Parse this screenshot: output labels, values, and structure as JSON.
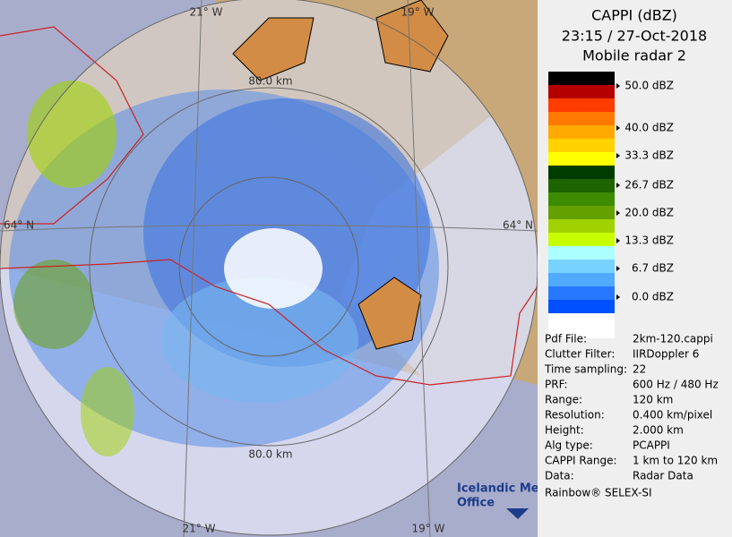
{
  "header": {
    "title": "CAPPI (dBZ)",
    "time": "23:15 / 27-Oct-2018",
    "radar": "Mobile radar 2"
  },
  "legend": {
    "colors": [
      "#000000",
      "#b40000",
      "#ff3c00",
      "#ff7800",
      "#ffaa00",
      "#ffd200",
      "#ffff00",
      "#003c00",
      "#1e6400",
      "#3c8c00",
      "#64a000",
      "#a0d200",
      "#c8ff00",
      "#aaffff",
      "#78d2ff",
      "#50aaff",
      "#2878ff",
      "#0050ff"
    ],
    "labels": [
      "50.0 dBZ",
      "40.0 dBZ",
      "33.3 dBZ",
      "26.7 dBZ",
      "20.0 dBZ",
      "13.3 dBZ",
      "6.7 dBZ",
      "0.0 dBZ"
    ]
  },
  "info": [
    [
      "Pdf File:",
      "2km-120.cappi"
    ],
    [
      "Clutter Filter:",
      "IIRDoppler 6"
    ],
    [
      "Time sampling:",
      "22"
    ],
    [
      "PRF:",
      "600 Hz / 480 Hz"
    ],
    [
      "Range:",
      "120 km"
    ],
    [
      "Resolution:",
      "0.400 km/pixel"
    ],
    [
      "Height:",
      "2.000 km"
    ],
    [
      "Alg type:",
      "PCAPPI"
    ],
    [
      "CAPPI Range:",
      "1 km to 120 km"
    ],
    [
      "Data:",
      "Radar Data"
    ]
  ],
  "footer": "Rainbow® SELEX-SI",
  "map": {
    "lon_left_top": "21° W",
    "lon_right_top": "19° W",
    "lon_left_bottom": "21° W",
    "lon_right_bottom": "19° W",
    "lat_left": "64° N",
    "lat_right": "64° N",
    "ring_top": "80.0 km",
    "ring_bottom": "80.0 km",
    "logo_line1": "Icelandic Met",
    "logo_line2": "Office"
  }
}
